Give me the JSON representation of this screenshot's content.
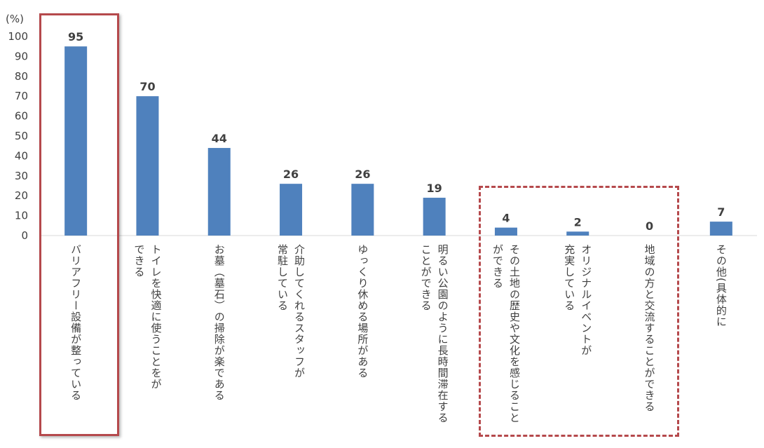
{
  "chart_data": {
    "type": "bar",
    "title": "",
    "unit_label": "(%)",
    "xlabel": "",
    "ylabel": "(%)",
    "ylim": [
      0,
      100
    ],
    "yticks": [
      0,
      10,
      20,
      30,
      40,
      50,
      60,
      70,
      80,
      90,
      100
    ],
    "grid": false,
    "bar_color": "#4f81bd",
    "highlight_color": "#b5494c",
    "categories": [
      "バリアフリー設備が整っている",
      "トイレを快適に使うことをが\nできる",
      "お墓（墓石）の掃除が楽である",
      "介助してくれるスタッフが\n常駐している",
      "ゆっくり休める場所がある",
      "明るい公園のように長時間滞在する\nことができる",
      "その土地の歴史や文化を感じること\nができる",
      "オリジナルイベントが\n充実している",
      "地域の方と交流することができる",
      "その他(具体的に"
    ],
    "values": [
      95,
      70,
      44,
      26,
      26,
      19,
      4,
      2,
      0,
      7
    ],
    "highlighted_solid": [
      0
    ],
    "highlighted_dashed": [
      6,
      7,
      8
    ]
  }
}
